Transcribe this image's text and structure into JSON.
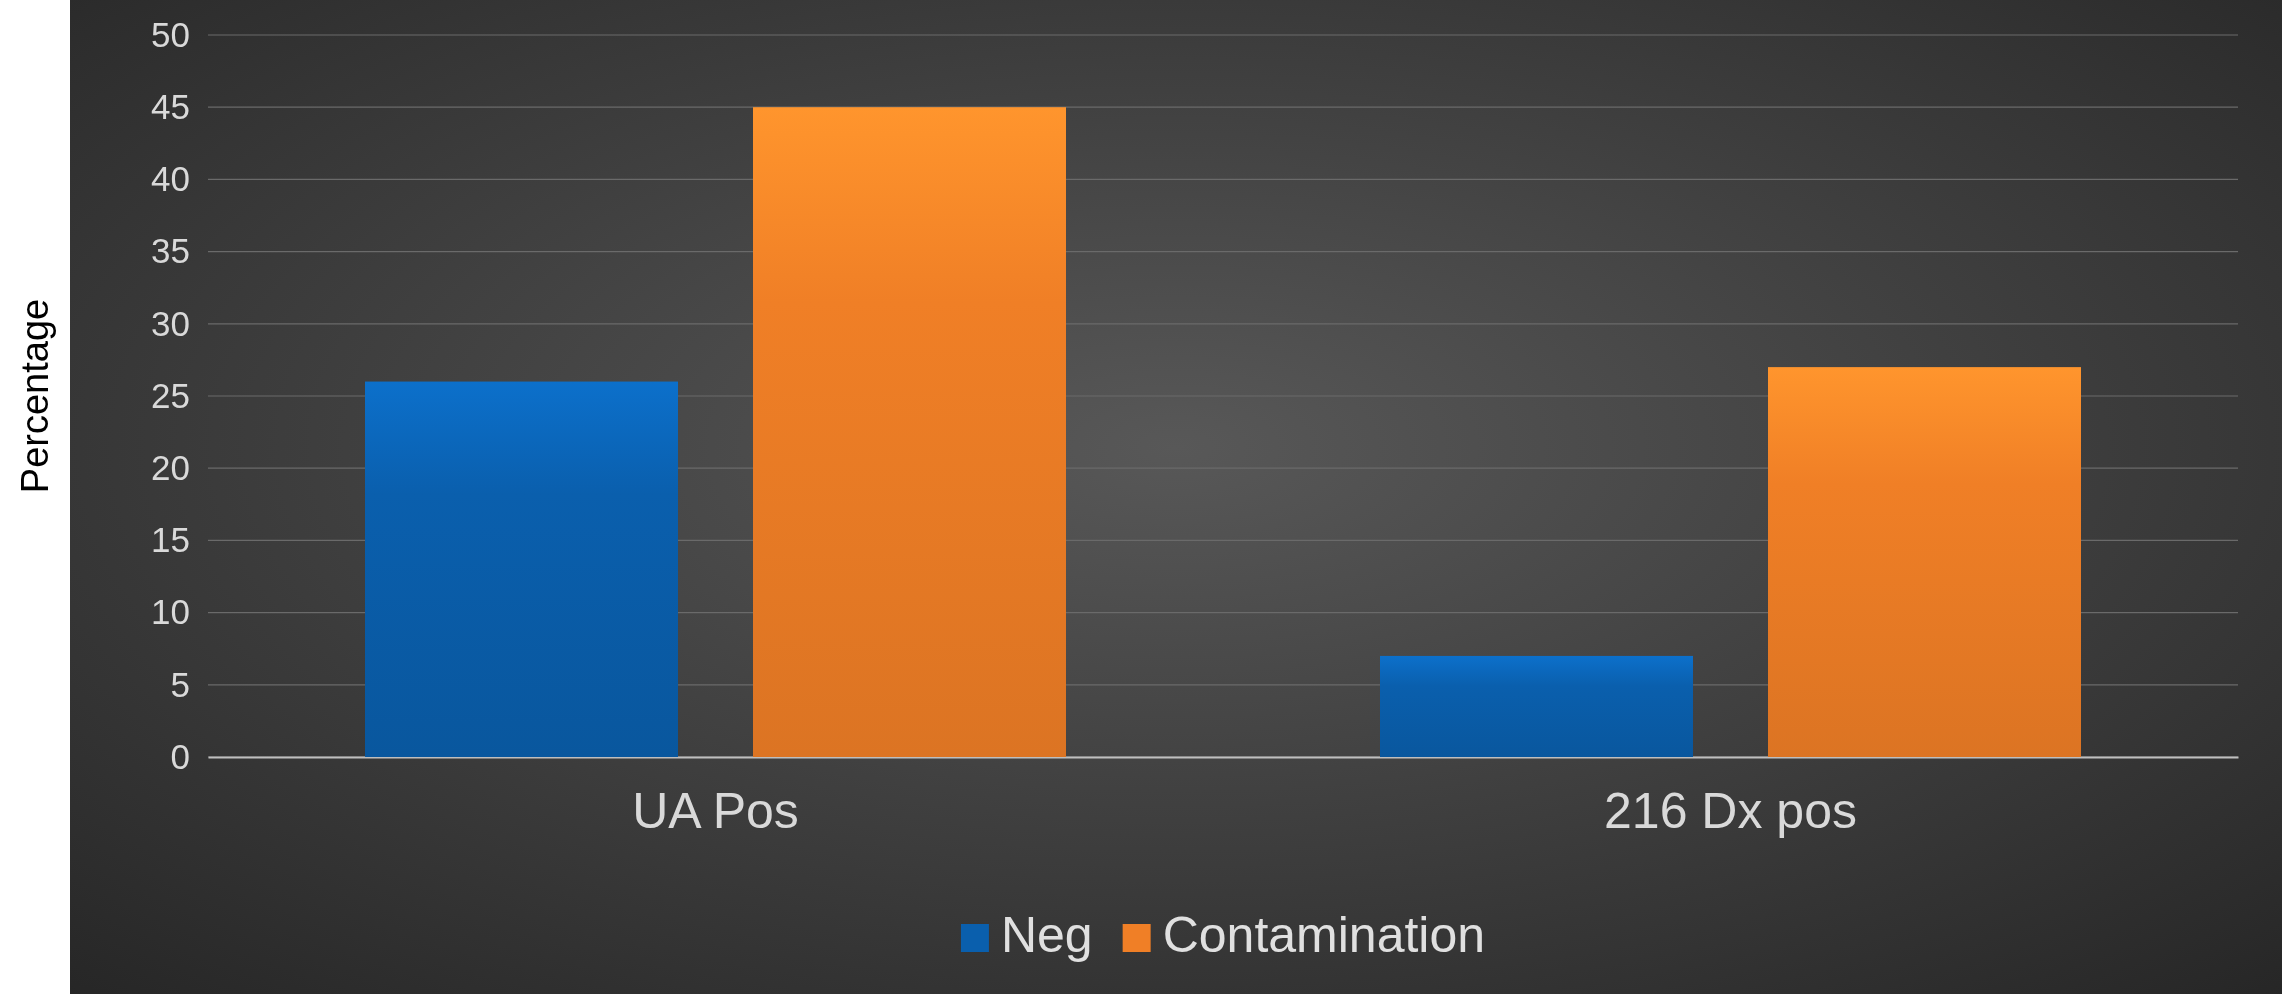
{
  "chart_data": {
    "type": "bar",
    "ylabel": "Percentage",
    "categories": [
      "UA Pos",
      "216 Dx pos"
    ],
    "series": [
      {
        "name": "Neg",
        "color": "#0a5fad",
        "values": [
          26,
          7
        ]
      },
      {
        "name": "Contamination",
        "color": "#f07f26",
        "values": [
          45,
          27
        ]
      }
    ],
    "ylim": [
      0,
      50
    ],
    "yticks": [
      0,
      5,
      10,
      15,
      20,
      25,
      30,
      35,
      40,
      45,
      50
    ],
    "grid": "y",
    "legend": "bottom"
  }
}
